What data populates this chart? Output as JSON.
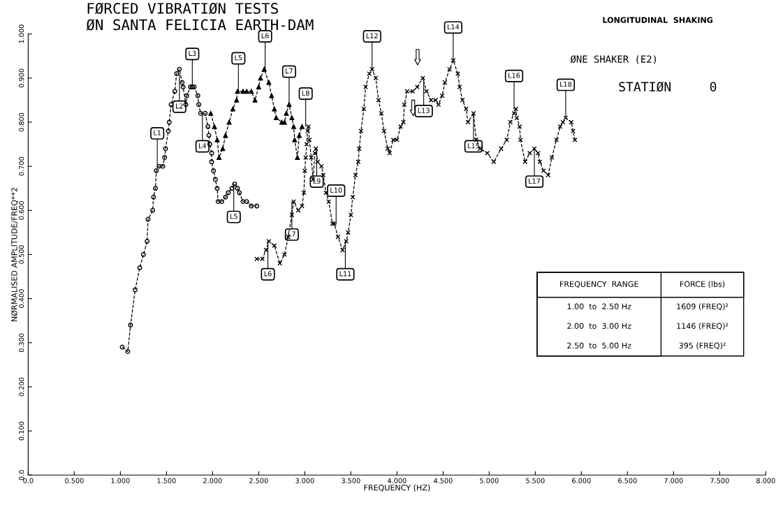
{
  "chart_data": {
    "type": "line",
    "title": "FØRCED VIBRATIØN TESTS\nØN SANTA FELICIA EARTH-DAM",
    "xlabel": "FREQUENCY (HZ)",
    "ylabel": "NØRMALISED AMPLITUDE/FREQ**2",
    "xlim": [
      0,
      8
    ],
    "ylim": [
      0,
      1.0
    ],
    "xticks": [
      {
        "value": 0,
        "label": "0.0"
      },
      {
        "value": 0.5,
        "label": "0.500"
      },
      {
        "value": 1,
        "label": "1.000"
      },
      {
        "value": 1.5,
        "label": "1.500"
      },
      {
        "value": 2,
        "label": "2.000"
      },
      {
        "value": 2.5,
        "label": "2.500"
      },
      {
        "value": 3,
        "label": "3.000"
      },
      {
        "value": 3.5,
        "label": "3.500"
      },
      {
        "value": 4,
        "label": "4.000"
      },
      {
        "value": 4.5,
        "label": "4.500"
      },
      {
        "value": 5,
        "label": "5.000"
      },
      {
        "value": 5.5,
        "label": "5.500"
      },
      {
        "value": 6,
        "label": "6.000"
      },
      {
        "value": 6.5,
        "label": "6.500"
      },
      {
        "value": 7,
        "label": "7.000"
      },
      {
        "value": 7.5,
        "label": "7.500"
      },
      {
        "value": 8,
        "label": "8.000"
      }
    ],
    "yticks": [
      {
        "value": 0,
        "label": "0.0"
      },
      {
        "value": 0.1,
        "label": "0.100"
      },
      {
        "value": 0.2,
        "label": "0.200"
      },
      {
        "value": 0.3,
        "label": "0.300"
      },
      {
        "value": 0.4,
        "label": "0.400"
      },
      {
        "value": 0.5,
        "label": "0.500"
      },
      {
        "value": 0.6,
        "label": "0.600"
      },
      {
        "value": 0.7,
        "label": "0.700"
      },
      {
        "value": 0.8,
        "label": "0.800"
      },
      {
        "value": 0.9,
        "label": "0.900"
      },
      {
        "value": 1.0,
        "label": "1.000"
      }
    ],
    "grid": false,
    "line_style": "dashed",
    "series": [
      {
        "color": "#000000",
        "marker": "circle",
        "x": [
          1.02,
          1.08,
          1.11,
          1.16,
          1.21,
          1.25,
          1.29,
          1.3,
          1.35,
          1.36,
          1.38,
          1.39,
          1.42,
          1.46,
          1.48,
          1.49,
          1.52,
          1.53,
          1.55,
          1.59,
          1.61,
          1.64,
          1.67,
          1.68,
          1.71,
          1.72,
          1.76,
          1.78,
          1.8,
          1.84,
          1.85,
          1.87,
          1.92,
          1.95,
          1.96,
          1.97,
          1.99,
          1.99,
          2.01,
          2.03,
          2.05,
          2.06,
          2.1,
          2.14,
          2.17,
          2.21,
          2.24,
          2.27,
          2.29,
          2.33,
          2.37,
          2.42,
          2.48
        ],
        "values": [
          0.29,
          0.28,
          0.34,
          0.42,
          0.47,
          0.5,
          0.53,
          0.58,
          0.6,
          0.63,
          0.65,
          0.69,
          0.7,
          0.7,
          0.72,
          0.74,
          0.78,
          0.8,
          0.84,
          0.87,
          0.91,
          0.92,
          0.89,
          0.88,
          0.84,
          0.86,
          0.88,
          0.88,
          0.88,
          0.86,
          0.84,
          0.82,
          0.82,
          0.79,
          0.77,
          0.75,
          0.73,
          0.71,
          0.69,
          0.67,
          0.65,
          0.62,
          0.62,
          0.63,
          0.64,
          0.65,
          0.66,
          0.65,
          0.64,
          0.62,
          0.62,
          0.61,
          0.61
        ]
      },
      {
        "color": "#000000",
        "marker": "triangle",
        "x": [
          1.98,
          2.02,
          2.05,
          2.07,
          2.11,
          2.14,
          2.18,
          2.22,
          2.26,
          2.27,
          2.33,
          2.37,
          2.42,
          2.46,
          2.5,
          2.52,
          2.56,
          2.61,
          2.64,
          2.67,
          2.69,
          2.75,
          2.78,
          2.8,
          2.83,
          2.86,
          2.88,
          2.89,
          2.92,
          2.94,
          2.97
        ],
        "values": [
          0.82,
          0.79,
          0.76,
          0.72,
          0.74,
          0.77,
          0.8,
          0.83,
          0.85,
          0.87,
          0.87,
          0.87,
          0.87,
          0.85,
          0.88,
          0.9,
          0.92,
          0.89,
          0.86,
          0.83,
          0.81,
          0.8,
          0.8,
          0.82,
          0.84,
          0.81,
          0.79,
          0.76,
          0.72,
          0.77,
          0.79
        ]
      },
      {
        "color": "#000000",
        "marker": "cross",
        "x": [
          2.48,
          2.54,
          2.58,
          2.61,
          2.67,
          2.73,
          2.78,
          2.82,
          2.86,
          2.88,
          2.93,
          2.97,
          2.99,
          3.0,
          3.01,
          3.02,
          3.03,
          3.04,
          3.05,
          3.07,
          3.09,
          3.11,
          3.12,
          3.14,
          3.18,
          3.2,
          3.23,
          3.26,
          3.3,
          3.32,
          3.36,
          3.41,
          3.45,
          3.47,
          3.5,
          3.52,
          3.55,
          3.58,
          3.59,
          3.61,
          3.64,
          3.66,
          3.7,
          3.73,
          3.77,
          3.8,
          3.83,
          3.86,
          3.9,
          3.92,
          3.96,
          4.0,
          4.04,
          4.07,
          4.08,
          4.11,
          4.17,
          4.22,
          4.28,
          4.32,
          4.37,
          4.42,
          4.45,
          4.49,
          4.52,
          4.57,
          4.61,
          4.66,
          4.68,
          4.71,
          4.75,
          4.77,
          4.83,
          4.86,
          4.9,
          4.98,
          5.05,
          5.13,
          5.19,
          5.23,
          5.27,
          5.29,
          5.3,
          5.33,
          5.34,
          5.39,
          5.44,
          5.49,
          5.53,
          5.55,
          5.59,
          5.64,
          5.68,
          5.73,
          5.77,
          5.8,
          5.83,
          5.89,
          5.91,
          5.93
        ],
        "values": [
          0.49,
          0.49,
          0.51,
          0.53,
          0.52,
          0.48,
          0.5,
          0.54,
          0.59,
          0.62,
          0.6,
          0.61,
          0.64,
          0.69,
          0.72,
          0.75,
          0.78,
          0.79,
          0.76,
          0.72,
          0.67,
          0.73,
          0.74,
          0.71,
          0.7,
          0.68,
          0.64,
          0.62,
          0.57,
          0.57,
          0.54,
          0.51,
          0.53,
          0.55,
          0.59,
          0.63,
          0.68,
          0.71,
          0.74,
          0.78,
          0.83,
          0.88,
          0.91,
          0.92,
          0.9,
          0.85,
          0.82,
          0.78,
          0.74,
          0.73,
          0.76,
          0.76,
          0.79,
          0.8,
          0.84,
          0.87,
          0.87,
          0.88,
          0.9,
          0.87,
          0.85,
          0.85,
          0.84,
          0.86,
          0.89,
          0.92,
          0.94,
          0.91,
          0.88,
          0.85,
          0.83,
          0.8,
          0.82,
          0.76,
          0.74,
          0.73,
          0.71,
          0.74,
          0.76,
          0.8,
          0.82,
          0.83,
          0.81,
          0.79,
          0.76,
          0.71,
          0.73,
          0.74,
          0.73,
          0.71,
          0.69,
          0.68,
          0.72,
          0.76,
          0.79,
          0.8,
          0.81,
          0.8,
          0.78,
          0.76
        ]
      }
    ],
    "annotations": [
      "LONGITUDINAL  SHAKING",
      "ØNE SHAKER (E2)",
      "STATIØN     0",
      "FREQUENCY  RANGE",
      "FORCE (lbs)",
      "1.00  to  2.50 Hz",
      "1609 (FREQ)²",
      "2.00  to  3.00 Hz",
      "1146 (FREQ)²",
      "2.50  to  5.00 Hz",
      "395 (FREQ)²",
      {
        "text": "L1",
        "x": 1.4,
        "y": 0.7
      },
      {
        "text": "L2",
        "x": 1.64,
        "y": 0.91
      },
      {
        "text": "L3",
        "x": 1.78,
        "y": 0.88
      },
      {
        "text": "L4",
        "x": 1.89,
        "y": 0.82
      },
      {
        "text": "L5",
        "x": 2.28,
        "y": 0.87
      },
      {
        "text": "L5",
        "x": 2.23,
        "y": 0.66
      },
      {
        "text": "L6",
        "x": 2.57,
        "y": 0.92
      },
      {
        "text": "L6",
        "x": 2.6,
        "y": 0.53
      },
      {
        "text": "L7",
        "x": 2.83,
        "y": 0.84
      },
      {
        "text": "L7",
        "x": 2.86,
        "y": 0.62
      },
      {
        "text": "L8",
        "x": 3.01,
        "y": 0.79
      },
      {
        "text": "L9",
        "x": 3.13,
        "y": 0.74
      },
      {
        "text": "L10",
        "x": 3.34,
        "y": 0.57
      },
      {
        "text": "L11",
        "x": 3.44,
        "y": 0.53
      },
      {
        "text": "L12",
        "x": 3.73,
        "y": 0.92
      },
      {
        "text": "L13",
        "x": 4.29,
        "y": 0.9
      },
      {
        "text": "L14",
        "x": 4.61,
        "y": 0.94
      },
      {
        "text": "L15",
        "x": 4.83,
        "y": 0.82
      },
      {
        "text": "L16",
        "x": 5.27,
        "y": 0.83
      },
      {
        "text": "L17",
        "x": 5.49,
        "y": 0.74
      },
      {
        "text": "L18",
        "x": 5.83,
        "y": 0.81
      }
    ]
  }
}
